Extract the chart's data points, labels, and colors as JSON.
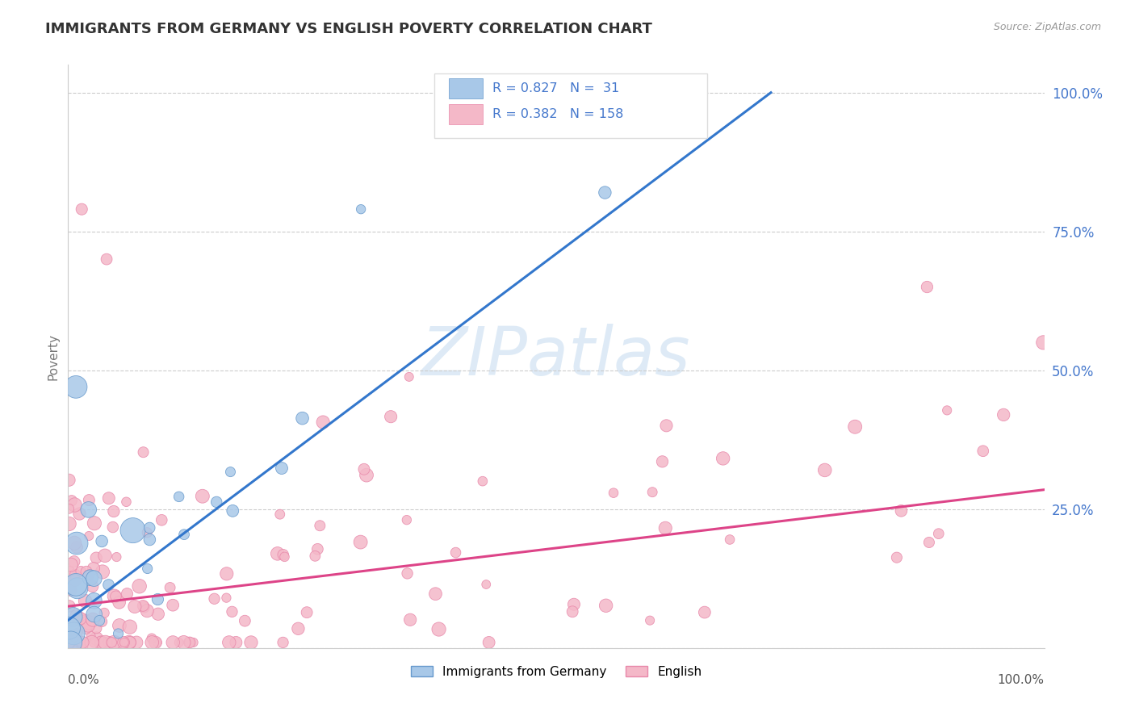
{
  "title": "IMMIGRANTS FROM GERMANY VS ENGLISH POVERTY CORRELATION CHART",
  "source_text": "Source: ZipAtlas.com",
  "ylabel": "Poverty",
  "blue_R": 0.827,
  "blue_N": 31,
  "pink_R": 0.382,
  "pink_N": 158,
  "blue_color": "#a8c8e8",
  "blue_edge_color": "#6699cc",
  "pink_color": "#f4b8c8",
  "pink_edge_color": "#e888aa",
  "blue_line_color": "#3377cc",
  "pink_line_color": "#dd4488",
  "tick_label_color": "#4477cc",
  "title_color": "#333333",
  "source_color": "#999999",
  "watermark_color": "#c8ddf0",
  "legend_label_blue": "Immigrants from Germany",
  "legend_label_pink": "English",
  "blue_line_x0": 0.0,
  "blue_line_y0": 0.05,
  "blue_line_x1": 0.72,
  "blue_line_y1": 1.0,
  "pink_line_x0": 0.0,
  "pink_line_y0": 0.075,
  "pink_line_x1": 1.0,
  "pink_line_y1": 0.285,
  "xlim": [
    0.0,
    1.0
  ],
  "ylim": [
    0.0,
    1.05
  ]
}
